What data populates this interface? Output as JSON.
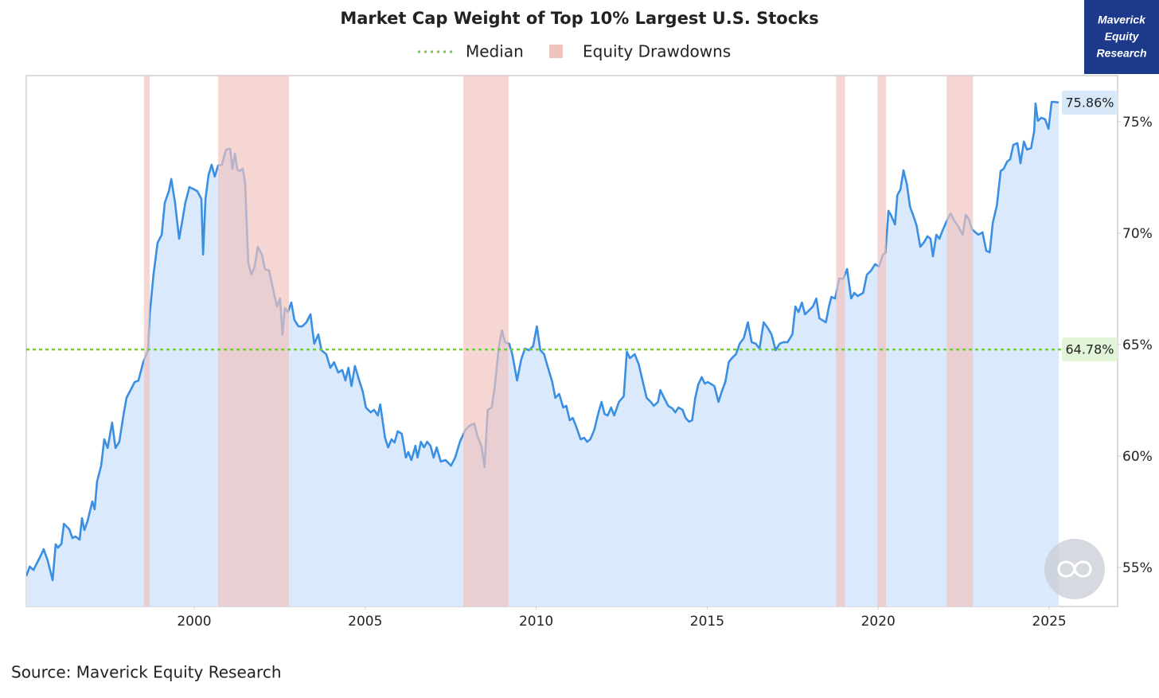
{
  "chart_data": {
    "type": "area",
    "title": "Market Cap Weight of Top 10% Largest U.S. Stocks",
    "source": "Source: Maverick Equity Research",
    "brand": [
      "Maverick",
      "Equity",
      "Research"
    ],
    "xlim": [
      1995.09,
      2027
    ],
    "ylim": [
      53.25,
      77.07
    ],
    "xticks": [
      2000,
      2005,
      2010,
      2015,
      2020,
      2025
    ],
    "yticks": [
      {
        "value": 55,
        "label": "55%"
      },
      {
        "value": 60,
        "label": "60%"
      },
      {
        "value": 65,
        "label": "65%"
      },
      {
        "value": 70,
        "label": "70%"
      },
      {
        "value": 75,
        "label": "75%"
      }
    ],
    "median": {
      "name": "Median",
      "value": 64.78,
      "label": "64.78%",
      "color": "#6ccf3a"
    },
    "end_label": {
      "value": 75.86,
      "label": "75.86%"
    },
    "drawdowns": {
      "name": "Equity Drawdowns",
      "color": "#f0c2bd",
      "ranges": [
        [
          1998.53,
          1998.7
        ],
        [
          2000.7,
          2002.77
        ],
        [
          2007.87,
          2009.19
        ],
        [
          2018.77,
          2019.03
        ],
        [
          2019.98,
          2020.23
        ],
        [
          2022.0,
          2022.77
        ]
      ]
    },
    "x": [
      1995.09,
      1995.19,
      1995.3,
      1995.49,
      1995.6,
      1995.72,
      1995.86,
      1995.95,
      1996.02,
      1996.12,
      1996.19,
      1996.35,
      1996.44,
      1996.53,
      1996.65,
      1996.72,
      1996.79,
      1996.88,
      1997.02,
      1997.09,
      1997.16,
      1997.28,
      1997.37,
      1997.47,
      1997.6,
      1997.7,
      1997.81,
      1997.93,
      1998.02,
      1998.14,
      1998.26,
      1998.37,
      1998.51,
      1998.65,
      1998.7,
      1998.81,
      1998.93,
      1999.05,
      1999.14,
      1999.26,
      1999.33,
      1999.44,
      1999.56,
      1999.65,
      1999.74,
      1999.86,
      1999.95,
      2000.09,
      2000.21,
      2000.26,
      2000.33,
      2000.42,
      2000.51,
      2000.6,
      2000.7,
      2000.81,
      2000.93,
      2001.05,
      2001.12,
      2001.19,
      2001.26,
      2001.33,
      2001.42,
      2001.49,
      2001.58,
      2001.67,
      2001.77,
      2001.86,
      2001.98,
      2002.07,
      2002.19,
      2002.3,
      2002.42,
      2002.51,
      2002.58,
      2002.65,
      2002.74,
      2002.84,
      2002.93,
      2003.05,
      2003.16,
      2003.28,
      2003.4,
      2003.51,
      2003.63,
      2003.72,
      2003.86,
      2003.98,
      2004.09,
      2004.21,
      2004.33,
      2004.42,
      2004.51,
      2004.6,
      2004.7,
      2004.84,
      2004.93,
      2005.02,
      2005.16,
      2005.26,
      2005.37,
      2005.44,
      2005.58,
      2005.67,
      2005.77,
      2005.86,
      2005.95,
      2006.07,
      2006.19,
      2006.26,
      2006.35,
      2006.47,
      2006.53,
      2006.63,
      2006.72,
      2006.81,
      2006.91,
      2007.0,
      2007.09,
      2007.21,
      2007.35,
      2007.51,
      2007.63,
      2007.77,
      2007.93,
      2008.05,
      2008.19,
      2008.28,
      2008.4,
      2008.49,
      2008.58,
      2008.7,
      2008.79,
      2008.91,
      2009.0,
      2009.09,
      2009.21,
      2009.3,
      2009.44,
      2009.56,
      2009.67,
      2009.79,
      2009.91,
      2010.02,
      2010.12,
      2010.23,
      2010.33,
      2010.47,
      2010.56,
      2010.67,
      2010.79,
      2010.88,
      2010.98,
      2011.07,
      2011.16,
      2011.3,
      2011.4,
      2011.49,
      2011.58,
      2011.7,
      2011.81,
      2011.91,
      2012.0,
      2012.09,
      2012.19,
      2012.28,
      2012.42,
      2012.56,
      2012.65,
      2012.74,
      2012.88,
      2013.0,
      2013.12,
      2013.23,
      2013.35,
      2013.44,
      2013.56,
      2013.63,
      2013.74,
      2013.86,
      2013.98,
      2014.07,
      2014.16,
      2014.28,
      2014.37,
      2014.47,
      2014.56,
      2014.65,
      2014.74,
      2014.84,
      2014.93,
      2015.02,
      2015.21,
      2015.33,
      2015.44,
      2015.53,
      2015.63,
      2015.72,
      2015.84,
      2015.95,
      2016.07,
      2016.19,
      2016.3,
      2016.42,
      2016.53,
      2016.65,
      2016.77,
      2016.88,
      2017.0,
      2017.12,
      2017.23,
      2017.35,
      2017.49,
      2017.58,
      2017.67,
      2017.77,
      2017.86,
      2017.98,
      2018.09,
      2018.19,
      2018.28,
      2018.47,
      2018.56,
      2018.63,
      2018.74,
      2018.86,
      2018.98,
      2019.09,
      2019.21,
      2019.3,
      2019.4,
      2019.56,
      2019.67,
      2019.79,
      2019.91,
      2020.02,
      2020.14,
      2020.21,
      2020.3,
      2020.37,
      2020.49,
      2020.56,
      2020.65,
      2020.74,
      2020.84,
      2020.93,
      2021.02,
      2021.12,
      2021.23,
      2021.33,
      2021.44,
      2021.53,
      2021.6,
      2021.7,
      2021.79,
      2021.88,
      2022.0,
      2022.12,
      2022.23,
      2022.35,
      2022.47,
      2022.56,
      2022.65,
      2022.74,
      2022.84,
      2022.93,
      2023.05,
      2023.16,
      2023.26,
      2023.35,
      2023.47,
      2023.58,
      2023.67,
      2023.77,
      2023.86,
      2023.95,
      2024.07,
      2024.16,
      2024.26,
      2024.35,
      2024.47,
      2024.56,
      2024.6,
      2024.67,
      2024.77,
      2024.88,
      2024.98,
      2025.07,
      2025.16,
      2025.28
    ],
    "series": [
      {
        "color": "#3b8fe3",
        "fill": "#dae9fb",
        "values": [
          54.61,
          55.04,
          54.89,
          55.46,
          55.82,
          55.29,
          54.43,
          56.04,
          55.89,
          56.07,
          56.96,
          56.71,
          56.32,
          56.39,
          56.25,
          57.21,
          56.68,
          57.07,
          57.96,
          57.61,
          58.86,
          59.57,
          60.75,
          60.36,
          61.5,
          60.36,
          60.64,
          61.82,
          62.61,
          62.96,
          63.32,
          63.39,
          64.21,
          64.75,
          66.36,
          68.14,
          69.57,
          69.93,
          71.36,
          71.89,
          72.43,
          71.36,
          69.75,
          70.54,
          71.36,
          72.07,
          72.0,
          71.89,
          71.54,
          69.04,
          71.54,
          72.61,
          73.07,
          72.54,
          73.04,
          73.07,
          73.75,
          73.79,
          72.89,
          73.57,
          72.86,
          72.79,
          72.89,
          72.25,
          68.68,
          68.14,
          68.5,
          69.39,
          69.04,
          68.39,
          68.32,
          67.54,
          66.71,
          67.07,
          65.46,
          66.64,
          66.46,
          66.89,
          66.11,
          65.82,
          65.82,
          66.0,
          66.36,
          65.04,
          65.46,
          64.75,
          64.57,
          63.96,
          64.21,
          63.75,
          63.86,
          63.39,
          63.96,
          63.14,
          64.04,
          63.32,
          62.89,
          62.18,
          61.96,
          62.07,
          61.82,
          62.32,
          60.82,
          60.39,
          60.75,
          60.61,
          61.11,
          61.0,
          59.93,
          60.18,
          59.82,
          60.46,
          59.93,
          60.64,
          60.39,
          60.64,
          60.46,
          59.93,
          60.39,
          59.75,
          59.82,
          59.57,
          59.93,
          60.64,
          61.18,
          61.36,
          61.46,
          60.89,
          60.46,
          59.5,
          62.07,
          62.18,
          63.14,
          64.93,
          65.64,
          65.11,
          65.04,
          64.57,
          63.39,
          64.32,
          64.82,
          64.75,
          64.93,
          65.82,
          64.75,
          64.57,
          64.04,
          63.32,
          62.61,
          62.79,
          62.18,
          62.25,
          61.61,
          61.71,
          61.36,
          60.75,
          60.82,
          60.64,
          60.75,
          61.18,
          61.89,
          62.43,
          61.89,
          61.82,
          62.18,
          61.82,
          62.43,
          62.68,
          64.68,
          64.39,
          64.57,
          64.11,
          63.32,
          62.61,
          62.43,
          62.25,
          62.43,
          62.96,
          62.61,
          62.25,
          62.14,
          61.96,
          62.18,
          62.07,
          61.71,
          61.54,
          61.61,
          62.61,
          63.21,
          63.54,
          63.25,
          63.32,
          63.14,
          62.43,
          62.96,
          63.32,
          64.21,
          64.39,
          64.57,
          65.04,
          65.29,
          66.0,
          65.11,
          65.04,
          64.82,
          66.0,
          65.75,
          65.46,
          64.75,
          65.04,
          65.11,
          65.11,
          65.46,
          66.71,
          66.46,
          66.89,
          66.36,
          66.54,
          66.71,
          67.07,
          66.18,
          66.0,
          66.71,
          67.14,
          67.07,
          67.96,
          67.96,
          68.39,
          67.07,
          67.32,
          67.18,
          67.32,
          68.14,
          68.32,
          68.61,
          68.5,
          69.04,
          69.11,
          71.0,
          70.82,
          70.39,
          71.71,
          71.96,
          72.82,
          72.18,
          71.18,
          70.82,
          70.36,
          69.39,
          69.57,
          69.86,
          69.75,
          68.96,
          69.93,
          69.75,
          70.11,
          70.54,
          70.89,
          70.54,
          70.29,
          69.93,
          70.82,
          70.64,
          70.18,
          70.04,
          69.93,
          70.04,
          69.21,
          69.14,
          70.46,
          71.25,
          72.79,
          72.89,
          73.21,
          73.32,
          73.96,
          74.04,
          73.14,
          74.11,
          73.75,
          73.82,
          74.57,
          75.82,
          75.04,
          75.18,
          75.11,
          74.68,
          75.89,
          75.89,
          75.86
        ]
      }
    ]
  }
}
